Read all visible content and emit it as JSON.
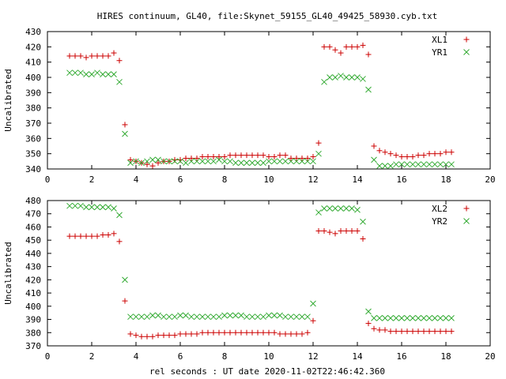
{
  "figure": {
    "title": "HIRES continuum, GL40, file:Skynet_59155_GL40_49425_58930.cyb.txt",
    "xlabel": "rel seconds : UT date 2020-11-02T22:46:42.360"
  },
  "colors": {
    "red": "#cc0000",
    "green": "#33aa33"
  },
  "chart_data": [
    {
      "type": "scatter",
      "title": "HIRES continuum, GL40, file:Skynet_59155_GL40_49425_58930.cyb.txt",
      "ylabel": "Uncalibrated",
      "xlim": [
        0,
        20
      ],
      "ylim": [
        340,
        430
      ],
      "xticks": [
        0,
        2,
        4,
        6,
        8,
        10,
        12,
        14,
        16,
        18,
        20
      ],
      "yticks": [
        340,
        350,
        360,
        370,
        380,
        390,
        400,
        410,
        420,
        430
      ],
      "legend": "top-right",
      "grid": false,
      "x": [
        1.0,
        1.25,
        1.5,
        1.75,
        2.0,
        2.25,
        2.5,
        2.75,
        3.0,
        3.25,
        3.5,
        3.75,
        4.0,
        4.25,
        4.5,
        4.75,
        5.0,
        5.25,
        5.5,
        5.75,
        6.0,
        6.25,
        6.5,
        6.75,
        7.0,
        7.25,
        7.5,
        7.75,
        8.0,
        8.25,
        8.5,
        8.75,
        9.0,
        9.25,
        9.5,
        9.75,
        10.0,
        10.25,
        10.5,
        10.75,
        11.0,
        11.25,
        11.5,
        11.75,
        12.0,
        12.25,
        12.5,
        12.75,
        13.0,
        13.25,
        13.5,
        13.75,
        14.0,
        14.25,
        14.5,
        14.75,
        15.0,
        15.25,
        15.5,
        15.75,
        16.0,
        16.25,
        16.5,
        16.75,
        17.0,
        17.25,
        17.5,
        17.75,
        18.0,
        18.25
      ],
      "series": [
        {
          "name": "XL1",
          "color": "#cc0000",
          "marker": "plus",
          "values": [
            414,
            414,
            414,
            413,
            414,
            414,
            414,
            414,
            416,
            411,
            369,
            346,
            345,
            344,
            343,
            342,
            344,
            345,
            345,
            346,
            346,
            347,
            347,
            347,
            348,
            348,
            348,
            348,
            348,
            349,
            349,
            349,
            349,
            349,
            349,
            349,
            348,
            348,
            349,
            349,
            347,
            347,
            347,
            347,
            348,
            357,
            420,
            420,
            418,
            416,
            420,
            420,
            420,
            421,
            415,
            355,
            352,
            351,
            350,
            349,
            348,
            348,
            348,
            349,
            349,
            350,
            350,
            350,
            351,
            351
          ]
        },
        {
          "name": "YR1",
          "color": "#33aa33",
          "marker": "cross",
          "values": [
            403,
            403,
            403,
            402,
            402,
            403,
            402,
            402,
            402,
            397,
            363,
            344,
            345,
            344,
            345,
            346,
            346,
            345,
            345,
            345,
            345,
            344,
            345,
            345,
            345,
            345,
            345,
            346,
            345,
            345,
            344,
            344,
            344,
            344,
            344,
            344,
            345,
            345,
            345,
            345,
            345,
            345,
            345,
            345,
            345,
            350,
            397,
            400,
            400,
            401,
            400,
            400,
            400,
            399,
            392,
            346,
            342,
            342,
            342,
            343,
            343,
            343,
            343,
            343,
            343,
            343,
            343,
            343,
            343,
            343
          ]
        }
      ]
    },
    {
      "type": "scatter",
      "title": "",
      "xlabel": "rel seconds : UT date 2020-11-02T22:46:42.360",
      "ylabel": "Uncalibrated",
      "xlim": [
        0,
        20
      ],
      "ylim": [
        370,
        480
      ],
      "xticks": [
        0,
        2,
        4,
        6,
        8,
        10,
        12,
        14,
        16,
        18,
        20
      ],
      "yticks": [
        370,
        380,
        390,
        400,
        410,
        420,
        430,
        440,
        450,
        460,
        470,
        480
      ],
      "legend": "top-right",
      "grid": false,
      "x": [
        1.0,
        1.25,
        1.5,
        1.75,
        2.0,
        2.25,
        2.5,
        2.75,
        3.0,
        3.25,
        3.5,
        3.75,
        4.0,
        4.25,
        4.5,
        4.75,
        5.0,
        5.25,
        5.5,
        5.75,
        6.0,
        6.25,
        6.5,
        6.75,
        7.0,
        7.25,
        7.5,
        7.75,
        8.0,
        8.25,
        8.5,
        8.75,
        9.0,
        9.25,
        9.5,
        9.75,
        10.0,
        10.25,
        10.5,
        10.75,
        11.0,
        11.25,
        11.5,
        11.75,
        12.0,
        12.25,
        12.5,
        12.75,
        13.0,
        13.25,
        13.5,
        13.75,
        14.0,
        14.25,
        14.5,
        14.75,
        15.0,
        15.25,
        15.5,
        15.75,
        16.0,
        16.25,
        16.5,
        16.75,
        17.0,
        17.25,
        17.5,
        17.75,
        18.0,
        18.25
      ],
      "series": [
        {
          "name": "XL2",
          "color": "#cc0000",
          "marker": "plus",
          "values": [
            453,
            453,
            453,
            453,
            453,
            453,
            454,
            454,
            455,
            449,
            404,
            379,
            378,
            377,
            377,
            377,
            378,
            378,
            378,
            378,
            379,
            379,
            379,
            379,
            380,
            380,
            380,
            380,
            380,
            380,
            380,
            380,
            380,
            380,
            380,
            380,
            380,
            380,
            379,
            379,
            379,
            379,
            379,
            380,
            389,
            457,
            457,
            456,
            455,
            457,
            457,
            457,
            457,
            451,
            387,
            383,
            382,
            382,
            381,
            381,
            381,
            381,
            381,
            381,
            381,
            381,
            381,
            381,
            381,
            381
          ]
        },
        {
          "name": "YR2",
          "color": "#33aa33",
          "marker": "cross",
          "values": [
            476,
            476,
            476,
            475,
            475,
            475,
            475,
            475,
            474,
            469,
            420,
            392,
            392,
            392,
            392,
            393,
            393,
            392,
            392,
            392,
            393,
            393,
            392,
            392,
            392,
            392,
            392,
            392,
            393,
            393,
            393,
            393,
            392,
            392,
            392,
            392,
            393,
            393,
            393,
            392,
            392,
            392,
            392,
            392,
            402,
            471,
            474,
            474,
            474,
            474,
            474,
            474,
            473,
            464,
            396,
            391,
            391,
            391,
            391,
            391,
            391,
            391,
            391,
            391,
            391,
            391,
            391,
            391,
            391,
            391
          ]
        }
      ]
    }
  ]
}
